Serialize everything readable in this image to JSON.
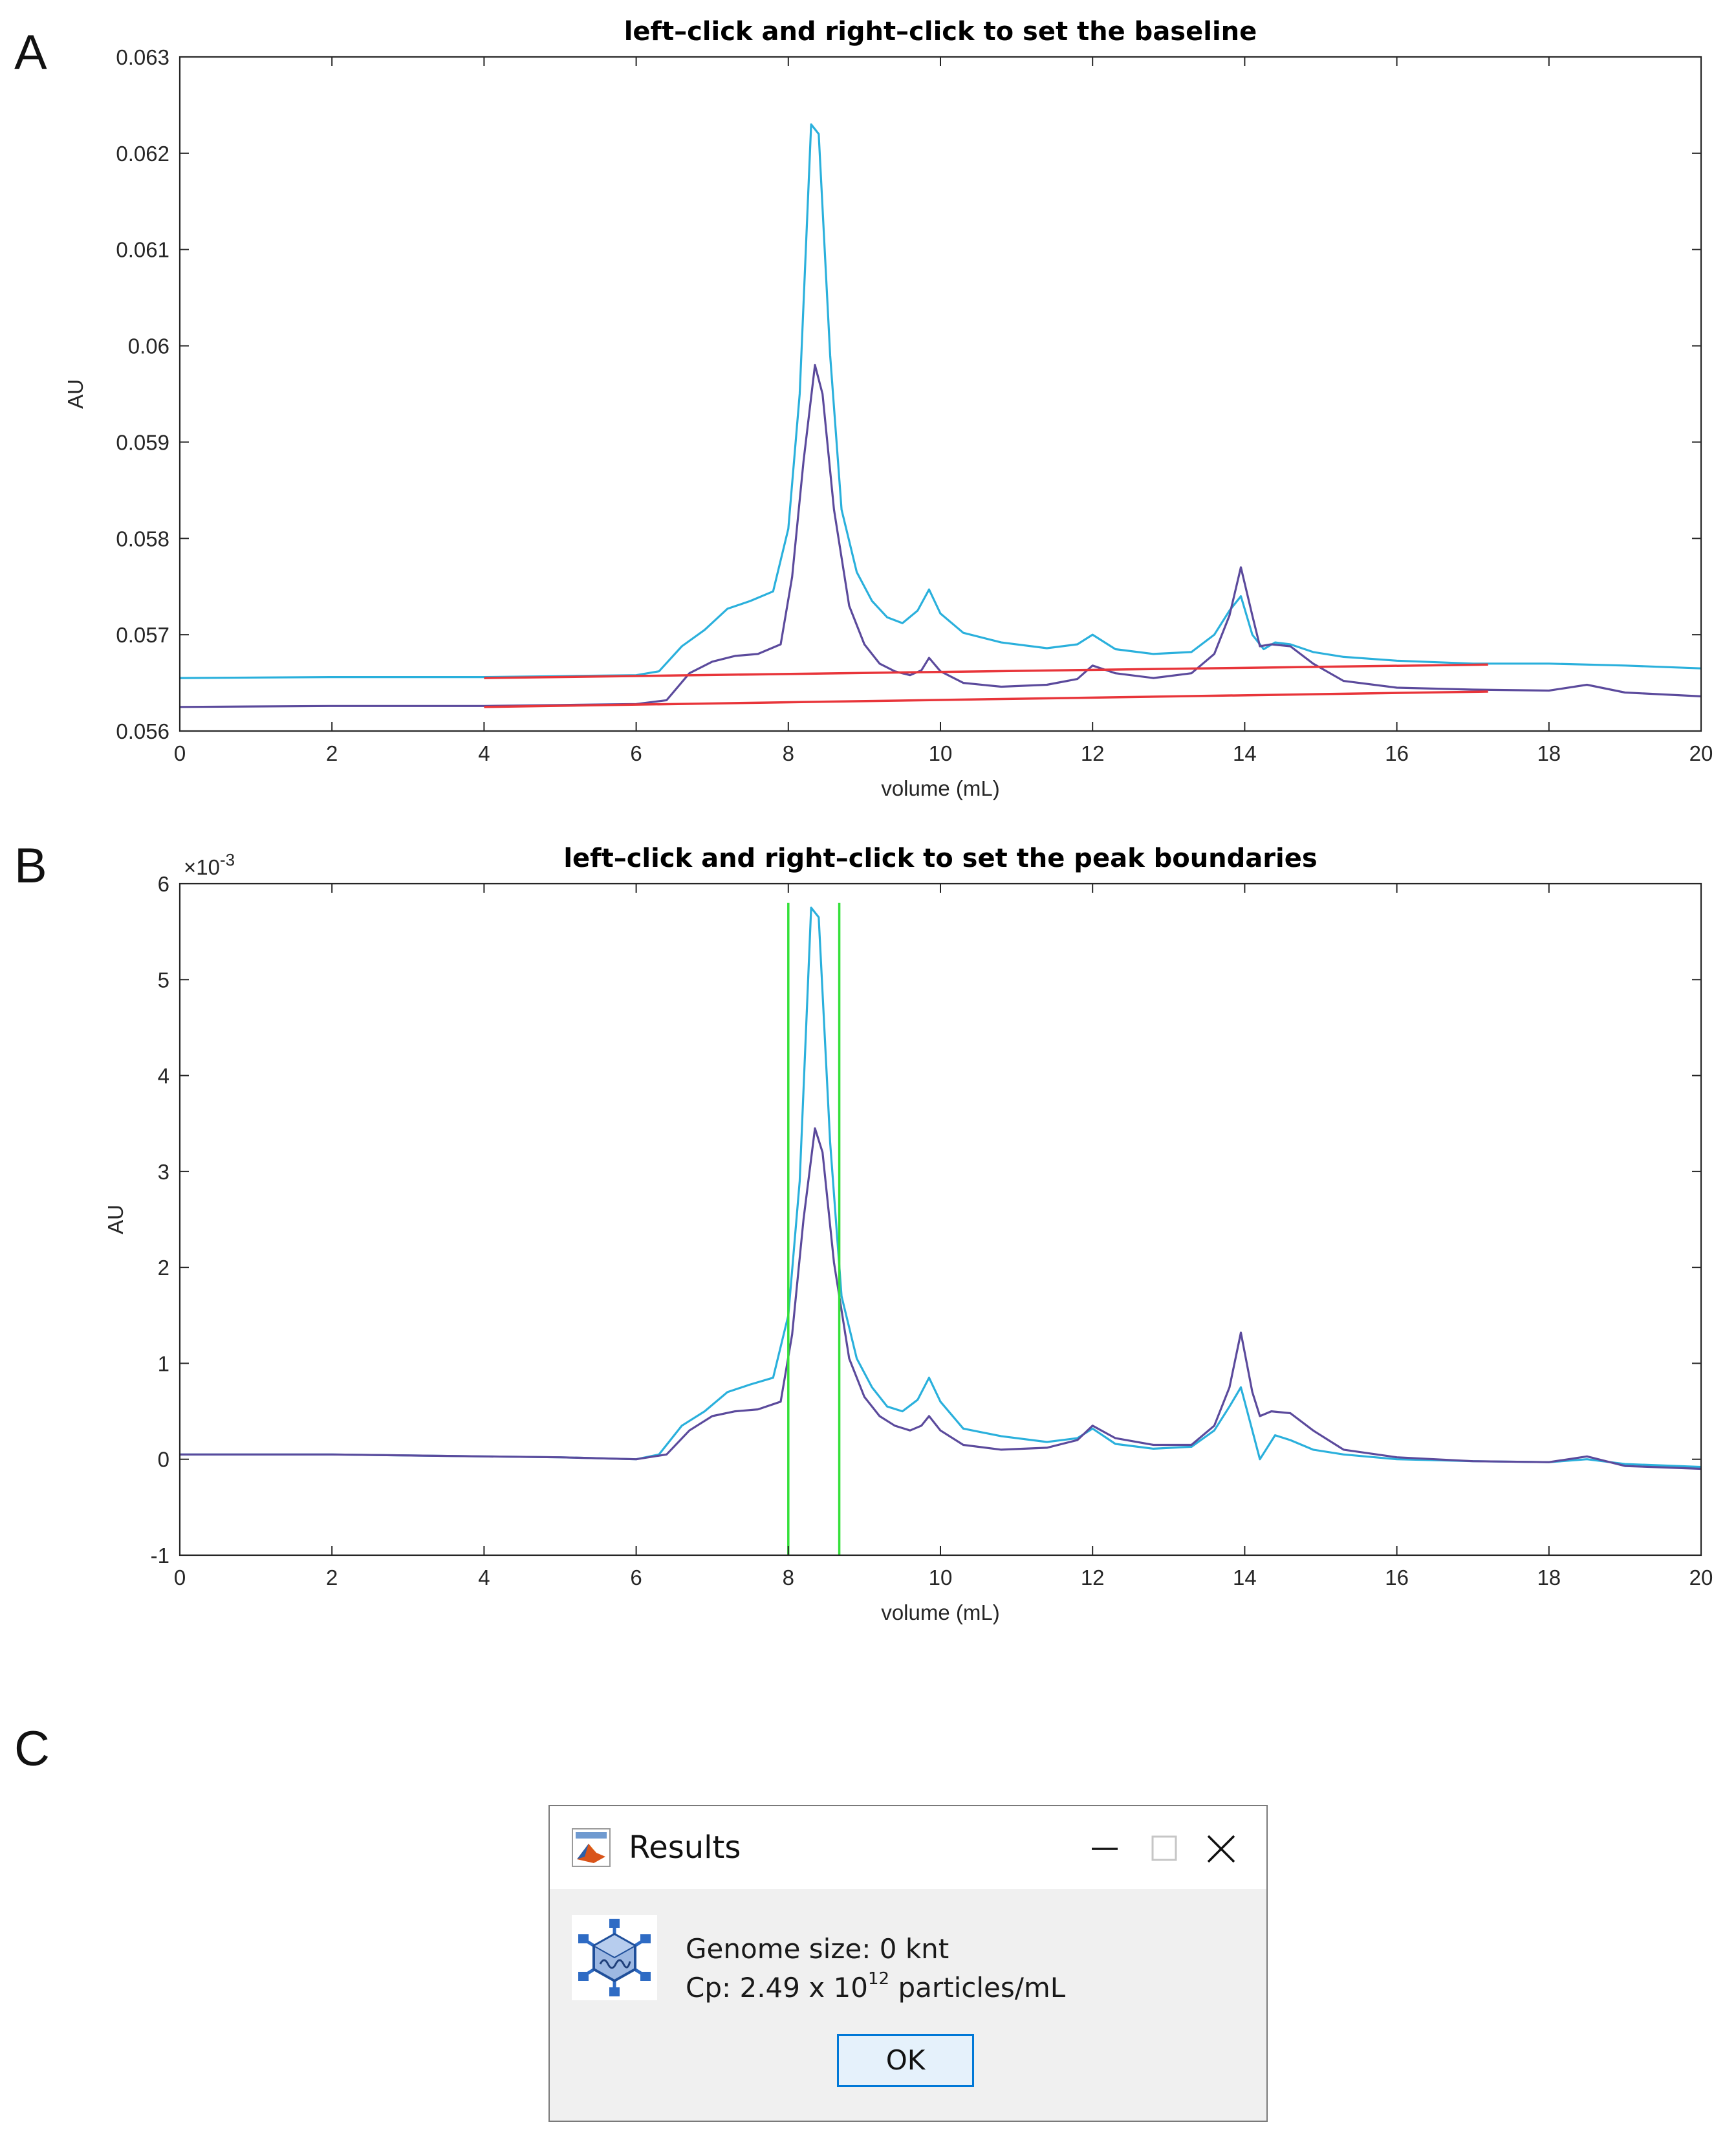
{
  "panels": {
    "a": "A",
    "b": "B",
    "c": "C"
  },
  "chart_data": [
    {
      "type": "line",
      "title": "left–click and right–click to set the baseline",
      "xlabel": "volume (mL)",
      "ylabel": "AU",
      "xlim": [
        0,
        20
      ],
      "ylim": [
        0.056,
        0.063
      ],
      "x_ticks": [
        0,
        2,
        4,
        6,
        8,
        10,
        12,
        14,
        16,
        18,
        20
      ],
      "x_tick_labels": [
        "0",
        "2",
        "4",
        "6",
        "8",
        "10",
        "12",
        "14",
        "16",
        "18",
        "20"
      ],
      "y_ticks": [
        0.056,
        0.057,
        0.058,
        0.059,
        0.06,
        0.061,
        0.062,
        0.063
      ],
      "y_tick_labels": [
        "0.056",
        "0.057",
        "0.058",
        "0.059",
        "0.06",
        "0.061",
        "0.062",
        "0.063"
      ],
      "grid": false,
      "series": [
        {
          "name": "trace 1",
          "color": "#2ab0dc",
          "x": [
            0,
            2,
            4,
            5,
            6,
            6.3,
            6.6,
            6.9,
            7.2,
            7.5,
            7.8,
            8.0,
            8.15,
            8.3,
            8.4,
            8.55,
            8.7,
            8.9,
            9.1,
            9.3,
            9.5,
            9.7,
            9.85,
            10.0,
            10.3,
            10.8,
            11.4,
            11.8,
            12.0,
            12.3,
            12.8,
            13.3,
            13.6,
            13.8,
            13.95,
            14.1,
            14.25,
            14.4,
            14.6,
            14.9,
            15.3,
            16,
            17,
            18,
            19,
            20
          ],
          "y": [
            0.05655,
            0.05656,
            0.05656,
            0.05657,
            0.05658,
            0.05662,
            0.05688,
            0.05705,
            0.05727,
            0.05735,
            0.05745,
            0.0581,
            0.0595,
            0.0623,
            0.0622,
            0.0599,
            0.0583,
            0.05765,
            0.05735,
            0.05718,
            0.05712,
            0.05725,
            0.05747,
            0.05722,
            0.05702,
            0.05692,
            0.05686,
            0.0569,
            0.057,
            0.05685,
            0.0568,
            0.05682,
            0.057,
            0.05725,
            0.0574,
            0.057,
            0.05685,
            0.05692,
            0.0569,
            0.05682,
            0.05677,
            0.05673,
            0.0567,
            0.0567,
            0.05668,
            0.05665
          ]
        },
        {
          "name": "trace 2",
          "color": "#5b4a9c",
          "x": [
            0,
            2,
            4,
            5,
            6,
            6.4,
            6.7,
            7.0,
            7.3,
            7.6,
            7.9,
            8.05,
            8.2,
            8.35,
            8.45,
            8.6,
            8.8,
            9.0,
            9.2,
            9.4,
            9.6,
            9.75,
            9.85,
            10.0,
            10.3,
            10.8,
            11.4,
            11.8,
            12.0,
            12.3,
            12.8,
            13.3,
            13.6,
            13.8,
            13.95,
            14.1,
            14.2,
            14.35,
            14.6,
            14.9,
            15.3,
            16,
            17,
            18,
            18.5,
            19,
            20
          ],
          "y": [
            0.05625,
            0.05626,
            0.05626,
            0.05627,
            0.05628,
            0.05632,
            0.0566,
            0.05672,
            0.05678,
            0.0568,
            0.0569,
            0.0576,
            0.0588,
            0.0598,
            0.0595,
            0.0583,
            0.0573,
            0.0569,
            0.0567,
            0.05662,
            0.05658,
            0.05663,
            0.05676,
            0.05662,
            0.0565,
            0.05646,
            0.05648,
            0.05654,
            0.05668,
            0.0566,
            0.05655,
            0.0566,
            0.0568,
            0.0572,
            0.0577,
            0.0572,
            0.05688,
            0.0569,
            0.05688,
            0.0567,
            0.05652,
            0.05645,
            0.05643,
            0.05642,
            0.05648,
            0.0564,
            0.05636
          ]
        },
        {
          "name": "baseline 1",
          "color": "#e8353a",
          "x": [
            4,
            17.2
          ],
          "y": [
            0.05655,
            0.05669
          ]
        },
        {
          "name": "baseline 2",
          "color": "#e8353a",
          "x": [
            4,
            17.2
          ],
          "y": [
            0.05625,
            0.05641
          ]
        }
      ]
    },
    {
      "type": "line",
      "title": "left–click and right–click to set the peak boundaries",
      "xlabel": "volume (mL)",
      "ylabel": "AU",
      "y_exponent": "×10",
      "y_exponent_power": "-3",
      "xlim": [
        0,
        20
      ],
      "ylim": [
        -1,
        6
      ],
      "x_ticks": [
        0,
        2,
        4,
        6,
        8,
        10,
        12,
        14,
        16,
        18,
        20
      ],
      "x_tick_labels": [
        "0",
        "2",
        "4",
        "6",
        "8",
        "10",
        "12",
        "14",
        "16",
        "18",
        "20"
      ],
      "y_ticks": [
        -1,
        0,
        1,
        2,
        3,
        4,
        5,
        6
      ],
      "y_tick_labels": [
        "-1",
        "0",
        "1",
        "2",
        "3",
        "4",
        "5",
        "6"
      ],
      "grid": false,
      "series": [
        {
          "name": "trace 1",
          "color": "#2ab0dc",
          "x": [
            0,
            2,
            4,
            5,
            6,
            6.3,
            6.6,
            6.9,
            7.2,
            7.5,
            7.8,
            8.0,
            8.15,
            8.3,
            8.4,
            8.55,
            8.7,
            8.9,
            9.1,
            9.3,
            9.5,
            9.7,
            9.85,
            10.0,
            10.3,
            10.8,
            11.4,
            11.8,
            12.0,
            12.3,
            12.8,
            13.3,
            13.6,
            13.8,
            13.95,
            14.1,
            14.2,
            14.4,
            14.6,
            14.9,
            15.3,
            16,
            17,
            18,
            18.5,
            19,
            20
          ],
          "y": [
            0.05,
            0.05,
            0.03,
            0.02,
            0.0,
            0.05,
            0.35,
            0.5,
            0.7,
            0.78,
            0.85,
            1.5,
            2.9,
            5.75,
            5.65,
            3.3,
            1.7,
            1.05,
            0.75,
            0.55,
            0.5,
            0.62,
            0.85,
            0.6,
            0.32,
            0.24,
            0.18,
            0.22,
            0.32,
            0.16,
            0.11,
            0.13,
            0.3,
            0.55,
            0.75,
            0.3,
            0.0,
            0.25,
            0.2,
            0.1,
            0.05,
            0.0,
            -0.02,
            -0.03,
            0.0,
            -0.05,
            -0.08
          ]
        },
        {
          "name": "trace 2",
          "color": "#5b4a9c",
          "x": [
            0,
            2,
            4,
            5,
            6,
            6.4,
            6.7,
            7.0,
            7.3,
            7.6,
            7.9,
            8.05,
            8.2,
            8.35,
            8.45,
            8.6,
            8.8,
            9.0,
            9.2,
            9.4,
            9.6,
            9.75,
            9.85,
            10.0,
            10.3,
            10.8,
            11.4,
            11.8,
            12.0,
            12.3,
            12.8,
            13.3,
            13.6,
            13.8,
            13.95,
            14.1,
            14.2,
            14.35,
            14.6,
            14.9,
            15.3,
            16,
            17,
            18,
            18.5,
            19,
            20
          ],
          "y": [
            0.05,
            0.05,
            0.03,
            0.02,
            0.0,
            0.05,
            0.3,
            0.45,
            0.5,
            0.52,
            0.6,
            1.3,
            2.5,
            3.45,
            3.2,
            2.05,
            1.05,
            0.65,
            0.45,
            0.35,
            0.3,
            0.35,
            0.45,
            0.3,
            0.15,
            0.1,
            0.12,
            0.2,
            0.35,
            0.22,
            0.15,
            0.15,
            0.35,
            0.75,
            1.32,
            0.7,
            0.45,
            0.5,
            0.48,
            0.3,
            0.1,
            0.02,
            -0.02,
            -0.03,
            0.03,
            -0.07,
            -0.1
          ]
        },
        {
          "name": "peak boundary left",
          "color": "#35e03a",
          "x": [
            8.0,
            8.0
          ],
          "y": [
            -1,
            5.8
          ]
        },
        {
          "name": "peak boundary right",
          "color": "#35e03a",
          "x": [
            8.67,
            8.67
          ],
          "y": [
            -1,
            5.8
          ]
        }
      ]
    }
  ],
  "dialog": {
    "title": "Results",
    "genome_line": "Genome size:  0 knt",
    "cp_prefix": "Cp: 2.49 x 10",
    "cp_power": "12",
    "cp_suffix": " particles/mL",
    "ok_label": "OK",
    "minimize_glyph": "—",
    "close_glyph": "✕"
  }
}
